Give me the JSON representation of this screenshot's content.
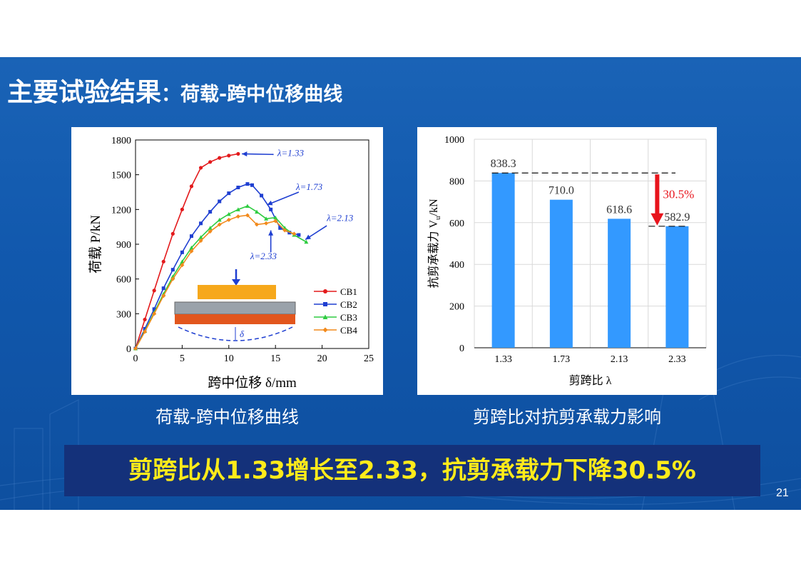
{
  "slide": {
    "title_main": "主要试验结果",
    "title_sub": "：荷载-跨中位移曲线",
    "caption_left": "荷载-跨中位移曲线",
    "caption_right": "剪跨比对抗剪承载力影响",
    "conclusion": "剪跨比从1.33增长至2.33，抗剪承载力下降30.5%",
    "page_number": "21",
    "colors": {
      "background": "#1158ad",
      "conclusion_bg": "#14317a",
      "conclusion_text": "#ffeb1a"
    }
  },
  "chart_data": [
    {
      "type": "line",
      "xlabel": "跨中位移 δ/mm",
      "ylabel": "荷载 P/kN",
      "xlim": [
        0,
        25
      ],
      "ylim": [
        0,
        1800
      ],
      "xticks": [
        "0",
        "5",
        "10",
        "15",
        "20",
        "25"
      ],
      "yticks": [
        "0",
        "300",
        "600",
        "900",
        "1200",
        "1500",
        "1800"
      ],
      "grid": false,
      "legend_position": "lower-right",
      "series": [
        {
          "name": "CB1",
          "color": "#e31a1c",
          "x": [
            0,
            1,
            2,
            3,
            4,
            5,
            6,
            7,
            8,
            9,
            10,
            11
          ],
          "y": [
            0,
            250,
            500,
            750,
            990,
            1200,
            1400,
            1560,
            1610,
            1645,
            1665,
            1680
          ]
        },
        {
          "name": "CB2",
          "color": "#1f3fd1",
          "x": [
            0,
            1,
            2,
            3,
            4,
            5,
            6,
            7,
            8,
            9,
            10,
            11,
            12,
            12.5,
            13.5,
            14.5,
            15.5,
            16.5,
            17.5
          ],
          "y": [
            0,
            170,
            340,
            520,
            680,
            830,
            970,
            1080,
            1180,
            1270,
            1340,
            1390,
            1420,
            1410,
            1320,
            1200,
            1040,
            1000,
            980
          ]
        },
        {
          "name": "CB3",
          "color": "#2ecc40",
          "x": [
            0,
            1,
            2,
            3,
            4,
            5,
            6,
            7,
            8,
            9,
            10,
            11,
            12,
            13,
            14,
            15,
            16,
            17,
            18.3
          ],
          "y": [
            0,
            150,
            310,
            470,
            620,
            750,
            870,
            960,
            1040,
            1110,
            1160,
            1200,
            1230,
            1180,
            1120,
            1130,
            1040,
            980,
            920
          ]
        },
        {
          "name": "CB4",
          "color": "#f28a1c",
          "x": [
            0,
            1,
            2,
            3,
            4,
            5,
            6,
            7,
            8,
            9,
            10,
            11,
            12,
            13,
            14,
            15,
            16,
            17
          ],
          "y": [
            0,
            145,
            300,
            455,
            600,
            720,
            840,
            930,
            1010,
            1070,
            1110,
            1140,
            1150,
            1070,
            1080,
            1100,
            1020,
            990
          ]
        }
      ],
      "annotations": [
        "λ=1.33",
        "λ=1.73",
        "λ=2.13",
        "λ=2.33"
      ],
      "inset_label": "δ"
    },
    {
      "type": "bar",
      "categories": [
        "1.33",
        "1.73",
        "2.13",
        "2.33"
      ],
      "values": [
        838.3,
        710.0,
        618.6,
        582.9
      ],
      "value_labels": [
        "838.3",
        "710.0",
        "618.6",
        "582.9"
      ],
      "xlabel": "剪跨比 λ",
      "ylabel": "抗剪承载力 V",
      "ylabel_sub": "u",
      "ylabel_unit": "/kN",
      "ylim": [
        0,
        1000
      ],
      "yticks": [
        "0",
        "200",
        "400",
        "600",
        "800",
        "1000"
      ],
      "grid": true,
      "bar_color": "#3399ff",
      "annotation": "30.5%",
      "annotation_color": "#e8141c"
    }
  ]
}
